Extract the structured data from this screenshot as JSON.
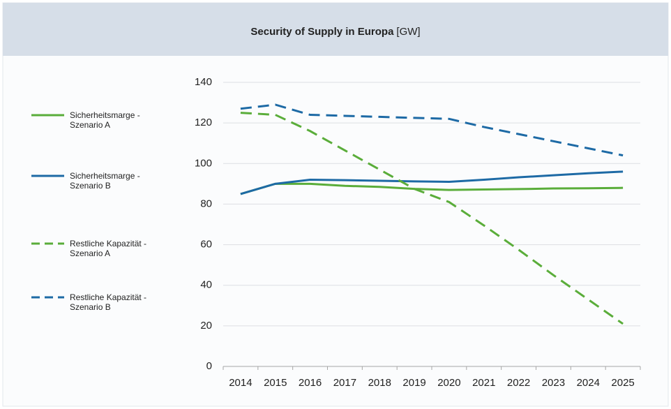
{
  "chart_data": {
    "type": "line",
    "title": "Security of Supply in Europa",
    "unit": "[GW]",
    "x": [
      2014,
      2015,
      2016,
      2017,
      2018,
      2019,
      2020,
      2021,
      2022,
      2023,
      2024,
      2025
    ],
    "xlim": [
      2013.5,
      2025.5
    ],
    "ylim": [
      0,
      140
    ],
    "yticks": [
      0,
      20,
      40,
      60,
      80,
      100,
      120,
      140
    ],
    "grid": true,
    "legend": "left",
    "series": [
      {
        "name": "Sicherheitsmarge - Szenario A",
        "color": "#5aad3a",
        "style": "solid",
        "values": [
          85,
          90,
          90,
          89,
          88.5,
          87.5,
          87,
          87.2,
          87.4,
          87.7,
          87.8,
          88
        ]
      },
      {
        "name": "Sicherheitsmarge - Szenario B",
        "color": "#1d6aa5",
        "style": "solid",
        "values": [
          85,
          90,
          92,
          91.8,
          91.5,
          91.2,
          91,
          92,
          93.2,
          94.2,
          95.2,
          96
        ]
      },
      {
        "name": "Restliche Kapazität - Szenario A",
        "color": "#5aad3a",
        "style": "dashed",
        "values": [
          125,
          124,
          116,
          106.5,
          97,
          87.5,
          81,
          69.5,
          57.5,
          45,
          33,
          21
        ]
      },
      {
        "name": "Restliche Kapazität - Szenario B",
        "color": "#1d6aa5",
        "style": "dashed",
        "values": [
          127,
          129,
          124,
          123.5,
          123,
          122.5,
          122,
          118,
          114.5,
          111,
          107.5,
          104
        ]
      }
    ]
  }
}
